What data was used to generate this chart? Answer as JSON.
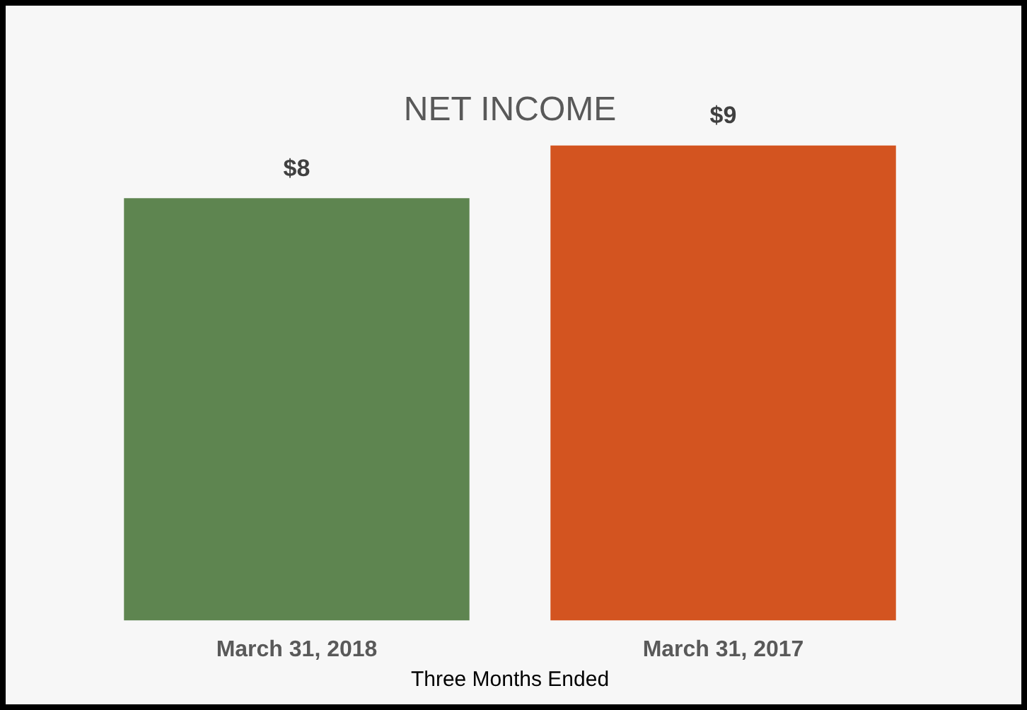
{
  "chart_data": {
    "type": "bar",
    "title": "NET INCOME",
    "xlabel": "Three Months Ended",
    "categories": [
      "March 31, 2018",
      "March 31, 2017"
    ],
    "values": [
      8,
      9
    ],
    "colors": [
      "#5e8550",
      "#d35420"
    ],
    "value_labels": [
      "$8",
      "$9"
    ],
    "tick_labels": "x",
    "grid": false,
    "legend": false
  }
}
